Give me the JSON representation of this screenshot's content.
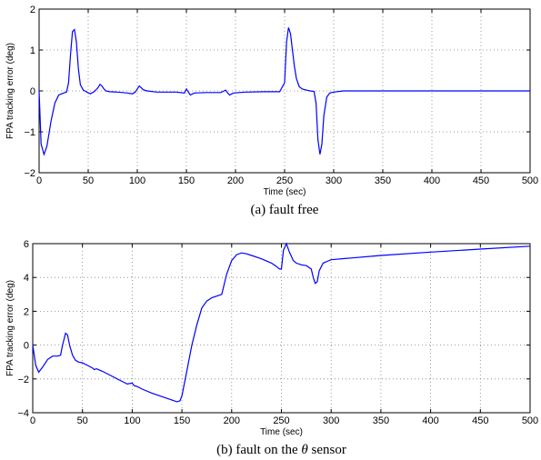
{
  "chart_data": [
    {
      "type": "line",
      "ylabel": "FPA tracking error (deg)",
      "xlabel": "Time (sec)",
      "caption": "(a)  fault free",
      "xlim": [
        0,
        500
      ],
      "ylim": [
        -2,
        2
      ],
      "xticks": [
        "0",
        "50",
        "100",
        "150",
        "200",
        "250",
        "300",
        "350",
        "400",
        "450",
        "500"
      ],
      "yticks": [
        "−2",
        "−1",
        "0",
        "1",
        "2"
      ],
      "grid": true,
      "color": "#0000ff",
      "series": [
        {
          "x": [
            0,
            2,
            5,
            8,
            12,
            16,
            20,
            25,
            28,
            30,
            32,
            34,
            36,
            38,
            40,
            42,
            45,
            48,
            52,
            56,
            60,
            62,
            64,
            66,
            68,
            72,
            80,
            90,
            95,
            98,
            100,
            102,
            104,
            106,
            110,
            120,
            140,
            148,
            150,
            152,
            154,
            158,
            170,
            185,
            190,
            192,
            194,
            198,
            210,
            230,
            245,
            250,
            252,
            254,
            256,
            258,
            260,
            262,
            265,
            268,
            272,
            276,
            280,
            282,
            284,
            286,
            288,
            290,
            293,
            296,
            300,
            310,
            350,
            400,
            450,
            500
          ],
          "y": [
            0,
            -1.3,
            -1.55,
            -1.35,
            -0.75,
            -0.3,
            -0.1,
            -0.05,
            -0.03,
            0.2,
            0.9,
            1.45,
            1.5,
            1.2,
            0.55,
            0.15,
            0.02,
            -0.02,
            -0.07,
            -0.02,
            0.08,
            0.16,
            0.12,
            0.05,
            0.0,
            -0.02,
            -0.03,
            -0.05,
            -0.07,
            -0.03,
            0.05,
            0.12,
            0.08,
            0.03,
            0.0,
            -0.03,
            -0.03,
            -0.05,
            0.05,
            -0.03,
            -0.1,
            -0.05,
            -0.04,
            -0.04,
            0.02,
            -0.05,
            -0.1,
            -0.05,
            -0.03,
            -0.02,
            -0.02,
            0.2,
            1.2,
            1.55,
            1.4,
            1.0,
            0.6,
            0.3,
            0.1,
            0.05,
            0.02,
            0.0,
            -0.01,
            -0.3,
            -1.2,
            -1.55,
            -1.3,
            -0.6,
            -0.15,
            -0.05,
            -0.03,
            0.0,
            0.0,
            0.0,
            0.0,
            0.0
          ]
        }
      ]
    },
    {
      "type": "line",
      "ylabel": "FPA tracking error (deg)",
      "xlabel": "Time (sec)",
      "caption": "(b)  fault on the",
      "caption_symbol": "θ",
      "caption_end": "sensor",
      "xlim": [
        0,
        500
      ],
      "ylim": [
        -4,
        6
      ],
      "xticks": [
        "0",
        "50",
        "100",
        "150",
        "200",
        "250",
        "300",
        "350",
        "400",
        "450",
        "500"
      ],
      "yticks": [
        "−4",
        "−2",
        "0",
        "2",
        "4",
        "6"
      ],
      "grid": true,
      "color": "#0000ff",
      "series": [
        {
          "x": [
            0,
            3,
            6,
            10,
            15,
            20,
            25,
            28,
            30,
            33,
            35,
            37,
            40,
            43,
            46,
            50,
            55,
            60,
            62,
            64,
            66,
            70,
            80,
            90,
            95,
            100,
            102,
            105,
            110,
            120,
            130,
            140,
            145,
            148,
            150,
            155,
            160,
            165,
            170,
            175,
            180,
            185,
            190,
            195,
            200,
            205,
            210,
            215,
            220,
            230,
            240,
            245,
            248,
            250,
            252,
            255,
            258,
            262,
            265,
            270,
            275,
            280,
            282,
            284,
            286,
            288,
            292,
            296,
            300,
            320,
            350,
            400,
            450,
            500
          ],
          "y": [
            0,
            -1.2,
            -1.6,
            -1.3,
            -0.85,
            -0.65,
            -0.65,
            -0.6,
            0.0,
            0.7,
            0.6,
            0.0,
            -0.6,
            -0.9,
            -1.0,
            -1.05,
            -1.2,
            -1.35,
            -1.45,
            -1.4,
            -1.45,
            -1.55,
            -1.85,
            -2.15,
            -2.3,
            -2.25,
            -2.4,
            -2.45,
            -2.6,
            -2.85,
            -3.05,
            -3.25,
            -3.35,
            -3.3,
            -3.0,
            -1.5,
            0.0,
            1.2,
            2.2,
            2.6,
            2.8,
            2.9,
            3.0,
            4.2,
            5.0,
            5.35,
            5.45,
            5.4,
            5.3,
            5.1,
            4.85,
            4.65,
            4.5,
            4.5,
            5.6,
            6.0,
            5.5,
            5.0,
            4.85,
            4.75,
            4.7,
            4.5,
            4.0,
            3.65,
            3.75,
            4.4,
            4.85,
            4.95,
            5.05,
            5.15,
            5.3,
            5.5,
            5.68,
            5.85
          ]
        }
      ]
    }
  ]
}
